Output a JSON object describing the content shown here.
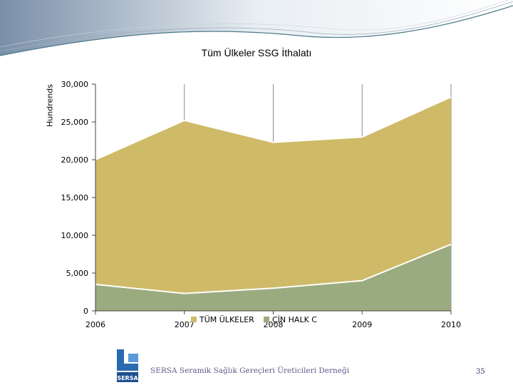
{
  "slide": {
    "footer_text": "SERSA Seramik Sağlık Gereçleri Üreticileri Derneği",
    "page_number": "35",
    "logo_text": "SERSA"
  },
  "chart_data": {
    "type": "area",
    "title": "Tüm Ülkeler SSG İthalatı",
    "ylabel": "Hundrends",
    "xlabel": "",
    "categories": [
      "2006",
      "2007",
      "2008",
      "2009",
      "2010"
    ],
    "ylim": [
      0,
      30000
    ],
    "yticks": [
      "0",
      "5,000",
      "10,000",
      "15,000",
      "20,000",
      "25,000",
      "30,000"
    ],
    "ytick_values": [
      0,
      5000,
      10000,
      15000,
      20000,
      25000,
      30000
    ],
    "grid": "vertical",
    "legend_position": "bottom",
    "series": [
      {
        "name": "TÜM ÜLKELER",
        "values": [
          20000,
          25200,
          22300,
          23000,
          28300
        ],
        "color": "#cfba68"
      },
      {
        "name": "ÇİN HALK C",
        "values": [
          3500,
          2300,
          3000,
          4000,
          8800
        ],
        "color": "#9bab80"
      }
    ]
  }
}
